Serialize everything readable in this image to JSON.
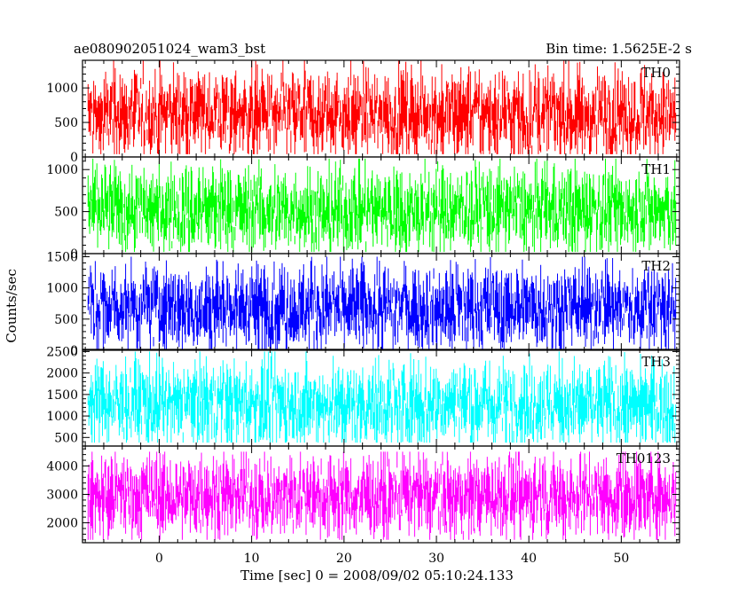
{
  "header": {
    "title": "ae080902051024_wam3_bst",
    "bin_time": "Bin time: 1.5625E-2 s"
  },
  "axes": {
    "ylabel": "Counts/sec",
    "xlabel": "Time [sec] 0 = 2008/09/02 05:10:24.133"
  },
  "chart_data": {
    "type": "line",
    "x_range": [
      -8.3,
      56.3
    ],
    "x_ticks": [
      0,
      10,
      20,
      30,
      40,
      50
    ],
    "x_tick_labels": [
      "0",
      "10",
      "20",
      "30",
      "40",
      "50"
    ],
    "data_x_range": [
      -7.7,
      55.9
    ],
    "bin_time_s": 0.015625,
    "grid": false,
    "panels": [
      {
        "label": "TH0",
        "color": "#ff0000",
        "ylim": [
          0,
          1400
        ],
        "y_ticks": [
          0,
          500,
          1000
        ],
        "y_tick_labels": [
          "0",
          "500",
          "1000"
        ],
        "series_band": {
          "mean": 620,
          "low": 40,
          "high": 1400
        }
      },
      {
        "label": "TH1",
        "color": "#00ff00",
        "ylim": [
          0,
          1150
        ],
        "y_ticks": [
          0,
          500,
          1000
        ],
        "y_tick_labels": [
          "0",
          "500",
          "1000"
        ],
        "series_band": {
          "mean": 520,
          "low": 20,
          "high": 1130
        }
      },
      {
        "label": "TH2",
        "color": "#0000ff",
        "ylim": [
          0,
          1550
        ],
        "y_ticks": [
          0,
          500,
          1000,
          1500
        ],
        "y_tick_labels": [
          "0",
          "500",
          "1000",
          "1500"
        ],
        "series_band": {
          "mean": 690,
          "low": 20,
          "high": 1500
        }
      },
      {
        "label": "TH3",
        "color": "#00ffff",
        "ylim": [
          300,
          2550
        ],
        "y_ticks": [
          500,
          1000,
          1500,
          2000,
          2500
        ],
        "y_tick_labels": [
          "500",
          "1000",
          "1500",
          "2000",
          "2500"
        ],
        "series_band": {
          "mean": 1280,
          "low": 380,
          "high": 2500
        }
      },
      {
        "label": "TH0123",
        "color": "#ff00ff",
        "ylim": [
          1300,
          4700
        ],
        "y_ticks": [
          2000,
          3000,
          4000
        ],
        "y_tick_labels": [
          "2000",
          "3000",
          "4000"
        ],
        "series_band": {
          "mean": 2950,
          "low": 1400,
          "high": 4500
        }
      }
    ]
  }
}
